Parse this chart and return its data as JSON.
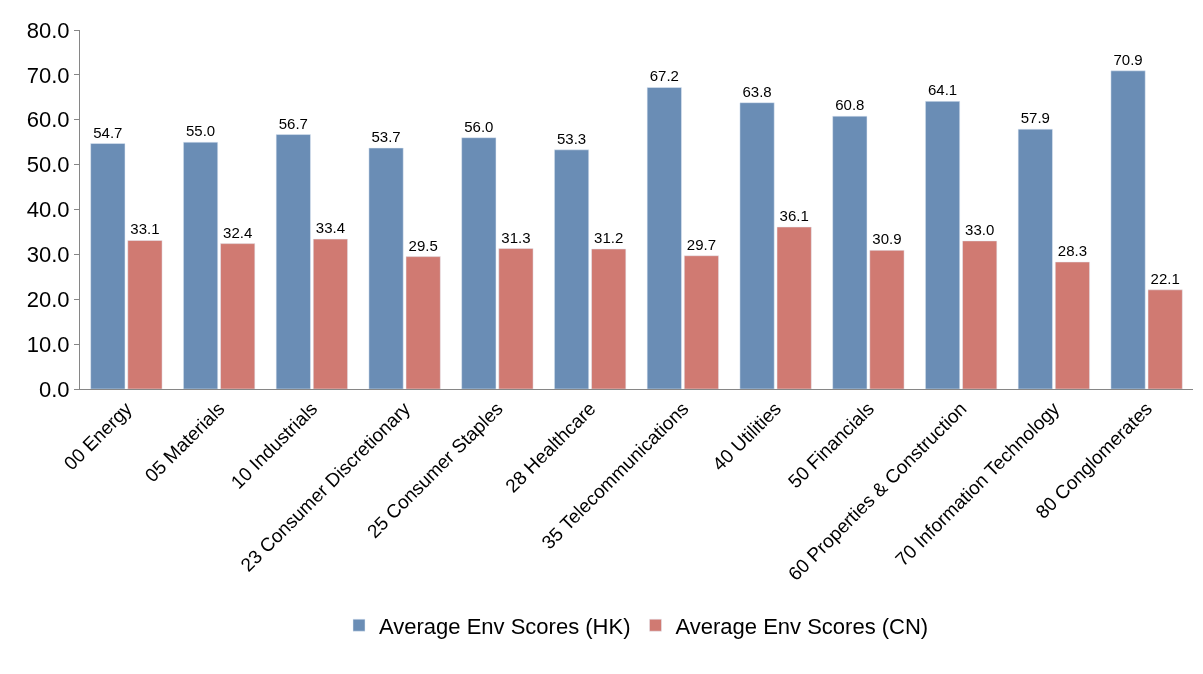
{
  "chart_data": {
    "type": "bar",
    "categories": [
      "00 Energy",
      "05 Materials",
      "10 Industrials",
      "23 Consumer Discretionary",
      "25 Consumer Staples",
      "28 Healthcare",
      "35 Telecommunications",
      "40 Utilities",
      "50 Financials",
      "60 Properties & Construction",
      "70 Information Technology",
      "80 Conglomerates"
    ],
    "series": [
      {
        "name": "Average Env Scores (HK)",
        "color": "#6a8db5",
        "values": [
          54.7,
          55.0,
          56.7,
          53.7,
          56.0,
          53.3,
          67.2,
          63.8,
          60.8,
          64.1,
          57.9,
          70.9
        ],
        "value_labels": [
          "54.7",
          "55.0",
          "56.7",
          "53.7",
          "56.0",
          "53.3",
          "67.2",
          "63.8",
          "60.8",
          "64.1",
          "57.9",
          "70.9"
        ]
      },
      {
        "name": "Average Env Scores (CN)",
        "color": "#d07a72",
        "values": [
          33.1,
          32.4,
          33.4,
          29.5,
          31.3,
          31.2,
          29.7,
          36.1,
          30.9,
          33.0,
          28.3,
          22.1
        ],
        "value_labels": [
          "33.1",
          "32.4",
          "33.4",
          "29.5",
          "31.3",
          "31.2",
          "29.7",
          "36.1",
          "30.9",
          "33.0",
          "28.3",
          "22.1"
        ]
      }
    ],
    "ylim": [
      0,
      80
    ],
    "yticks": [
      {
        "value": 0,
        "label": "0.0"
      },
      {
        "value": 10,
        "label": "10.0"
      },
      {
        "value": 20,
        "label": "20.0"
      },
      {
        "value": 30,
        "label": "30.0"
      },
      {
        "value": 40,
        "label": "40.0"
      },
      {
        "value": 50,
        "label": "50.0"
      },
      {
        "value": 60,
        "label": "60.0"
      },
      {
        "value": 70,
        "label": "70.0"
      },
      {
        "value": 80,
        "label": "80.0"
      }
    ],
    "legend": "bottom"
  }
}
